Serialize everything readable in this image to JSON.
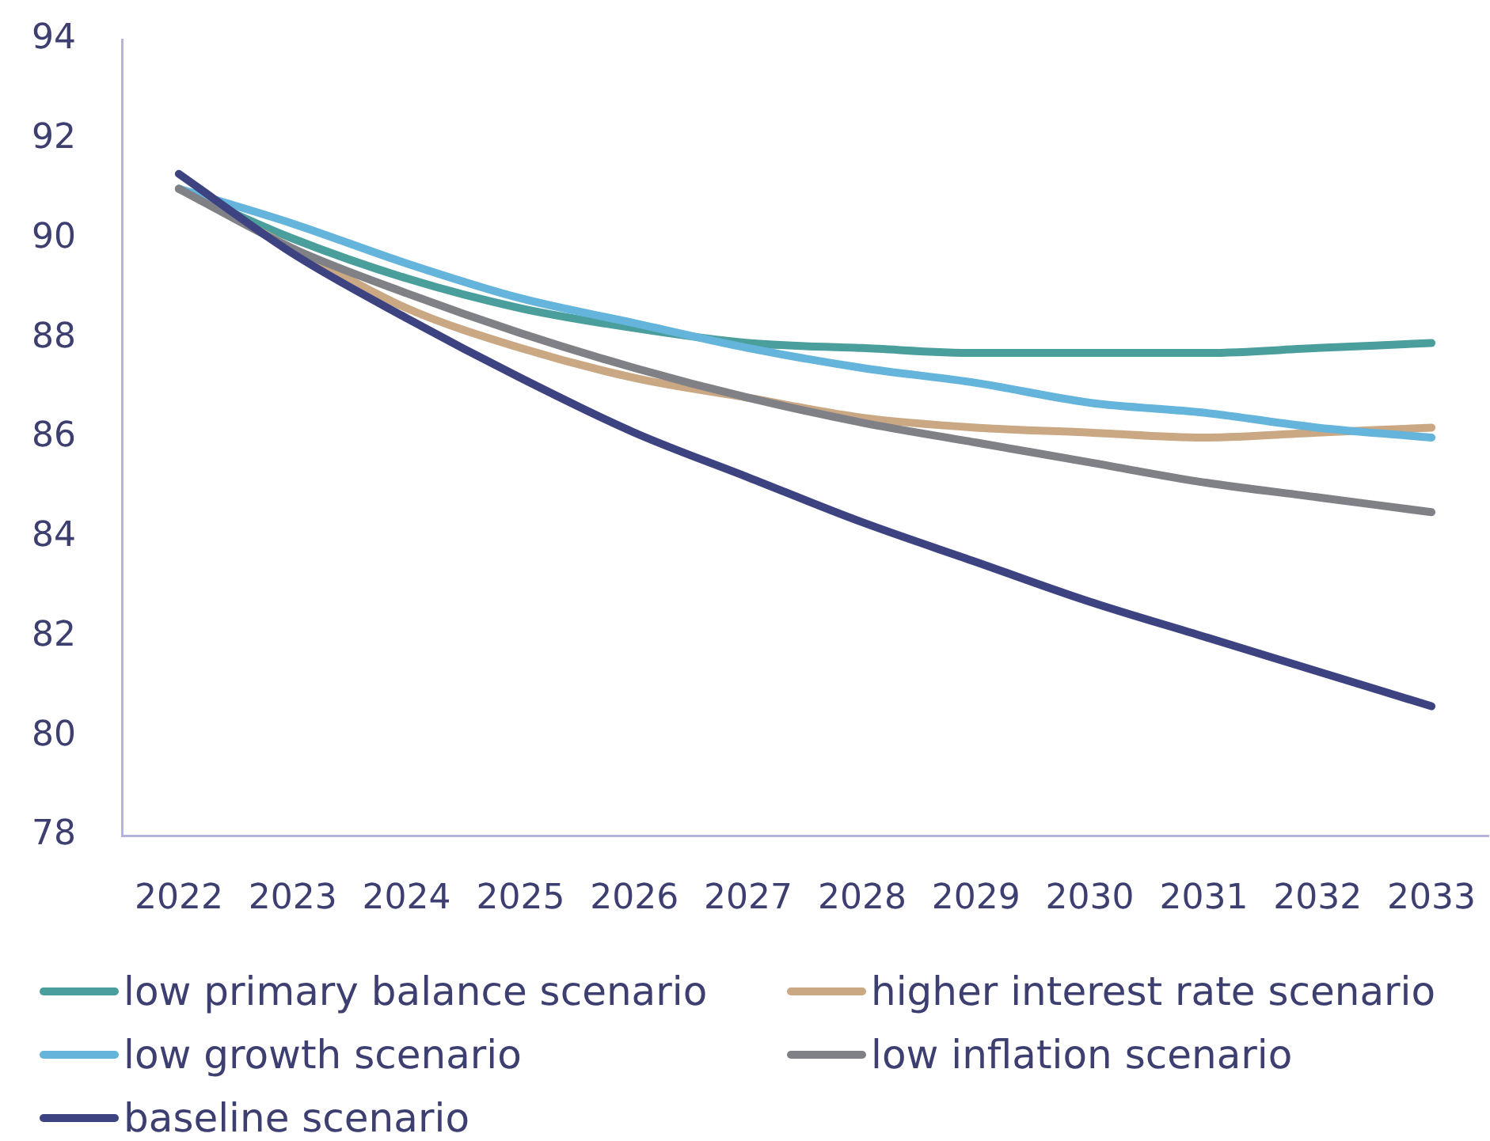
{
  "chart_data": {
    "type": "line",
    "categories": [
      "2022",
      "2023",
      "2024",
      "2025",
      "2026",
      "2027",
      "2028",
      "2029",
      "2030",
      "2031",
      "2032",
      "2033"
    ],
    "series": [
      {
        "name": "low primary balance scenario",
        "color": "#4a9f9c",
        "values": [
          91.0,
          90.0,
          89.2,
          88.6,
          88.2,
          87.9,
          87.8,
          87.7,
          87.7,
          87.7,
          87.8,
          87.9
        ]
      },
      {
        "name": "higher interest rate scenario",
        "color": "#c9a883",
        "values": [
          91.0,
          89.8,
          88.6,
          87.8,
          87.2,
          86.8,
          86.4,
          86.2,
          86.1,
          86.0,
          86.1,
          86.2
        ]
      },
      {
        "name": "low growth scenario",
        "color": "#64b4dc",
        "values": [
          91.0,
          90.3,
          89.5,
          88.8,
          88.3,
          87.8,
          87.4,
          87.1,
          86.7,
          86.5,
          86.2,
          86.0
        ]
      },
      {
        "name": "low inflation scenario",
        "color": "#808087",
        "values": [
          91.0,
          89.8,
          88.9,
          88.1,
          87.4,
          86.8,
          86.3,
          85.9,
          85.5,
          85.1,
          84.8,
          84.5
        ]
      },
      {
        "name": "baseline scenario",
        "color": "#3d4280",
        "values": [
          91.3,
          89.7,
          88.4,
          87.2,
          86.1,
          85.2,
          84.3,
          83.5,
          82.7,
          82.0,
          81.3,
          80.6
        ]
      }
    ],
    "ylim": [
      78,
      94
    ],
    "yticks": [
      78,
      80,
      82,
      84,
      86,
      88,
      90,
      92,
      94
    ],
    "grid": false,
    "legend": "bottom",
    "marker": "none",
    "line_style": "solid"
  }
}
